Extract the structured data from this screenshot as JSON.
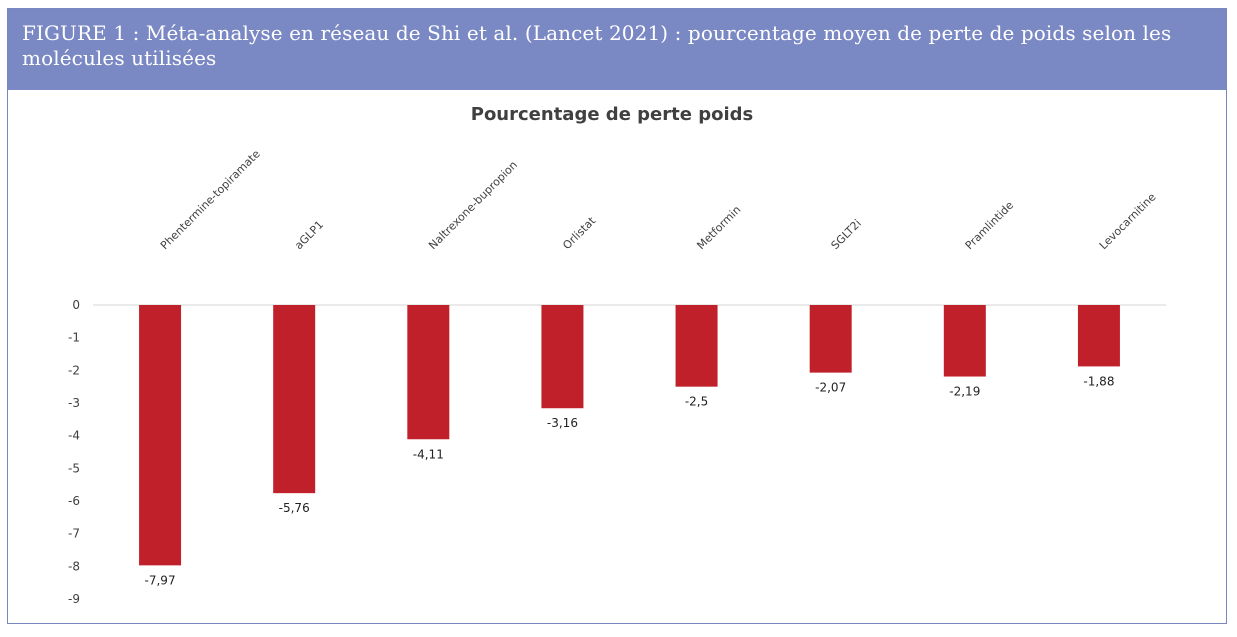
{
  "figure": {
    "caption": "FIGURE 1 : Méta-analyse en réseau de Shi et al. (Lancet 2021) : pourcentage moyen de perte de poids selon les molécules utilisées"
  },
  "colors": {
    "header_bg": "#7a88c4",
    "bar": "#c0202a",
    "axis_line": "#d4d4d4"
  },
  "chart_data": {
    "type": "bar",
    "title": "Pourcentage de perte poids",
    "xlabel": "",
    "ylabel": "",
    "categories": [
      "Phentermine-topiramate",
      "aGLP1",
      "Naltrexone-bupropion",
      "Orlistat",
      "Metformin",
      "SGLT2i",
      "Pramlintide",
      "Levocarnitine"
    ],
    "values": [
      -7.97,
      -5.76,
      -4.11,
      -3.16,
      -2.5,
      -2.07,
      -2.19,
      -1.88
    ],
    "value_labels": [
      "-7,97",
      "-5,76",
      "-4,11",
      "-3,16",
      "-2,5",
      "-2,07",
      "-2,19",
      "-1,88"
    ],
    "ylim": [
      -9,
      0
    ],
    "yticks": [
      "0",
      "-1",
      "-2",
      "-3",
      "-4",
      "-5",
      "-6",
      "-7",
      "-8",
      "-9"
    ],
    "category_label_position": "top, rotated",
    "grid": false,
    "legend": "none"
  }
}
